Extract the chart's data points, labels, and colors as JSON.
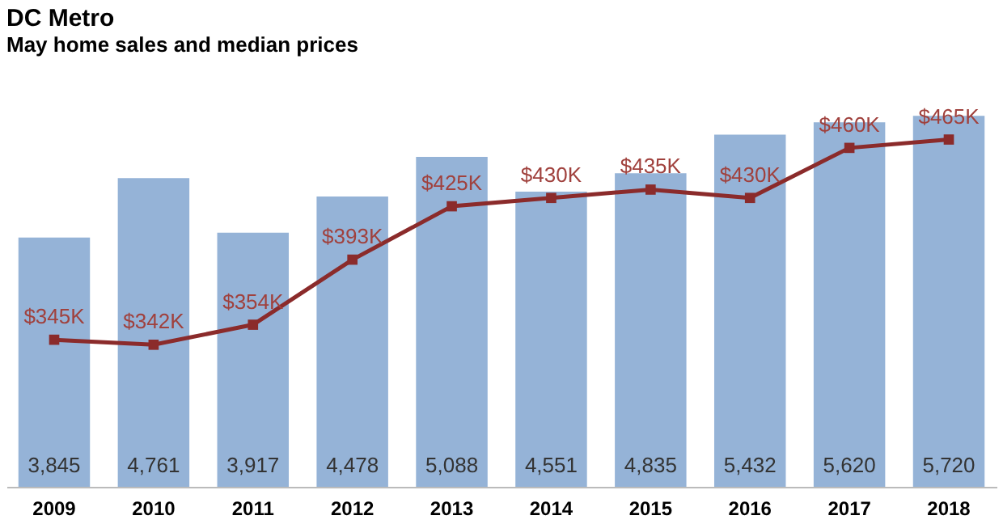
{
  "chart_data": {
    "type": "bar",
    "title": "DC Metro",
    "subtitle": "May home sales and median prices",
    "categories": [
      "2009",
      "2010",
      "2011",
      "2012",
      "2013",
      "2014",
      "2015",
      "2016",
      "2017",
      "2018"
    ],
    "series": [
      {
        "color": "#95b3d7",
        "values": [
          3845,
          4761,
          3917,
          4478,
          5088,
          4551,
          4835,
          5432,
          5620,
          5720
        ],
        "value_labels": [
          "3,845",
          "4,761",
          "3,917",
          "4,478",
          "5,088",
          "4,551",
          "4,835",
          "5,432",
          "5,620",
          "5,720"
        ]
      },
      {
        "type": "line",
        "axis": "y2",
        "color": "#8b2b2b",
        "marker": "square",
        "line_style": "solid",
        "values": [
          345,
          342,
          354,
          393,
          425,
          430,
          435,
          430,
          460,
          465
        ],
        "value_labels": [
          "$345K",
          "$342K",
          "$354K",
          "$393K",
          "$425K",
          "$430K",
          "$435K",
          "$430K",
          "$460K",
          "$465K"
        ]
      }
    ],
    "tick_labels": "x",
    "grid": false
  }
}
